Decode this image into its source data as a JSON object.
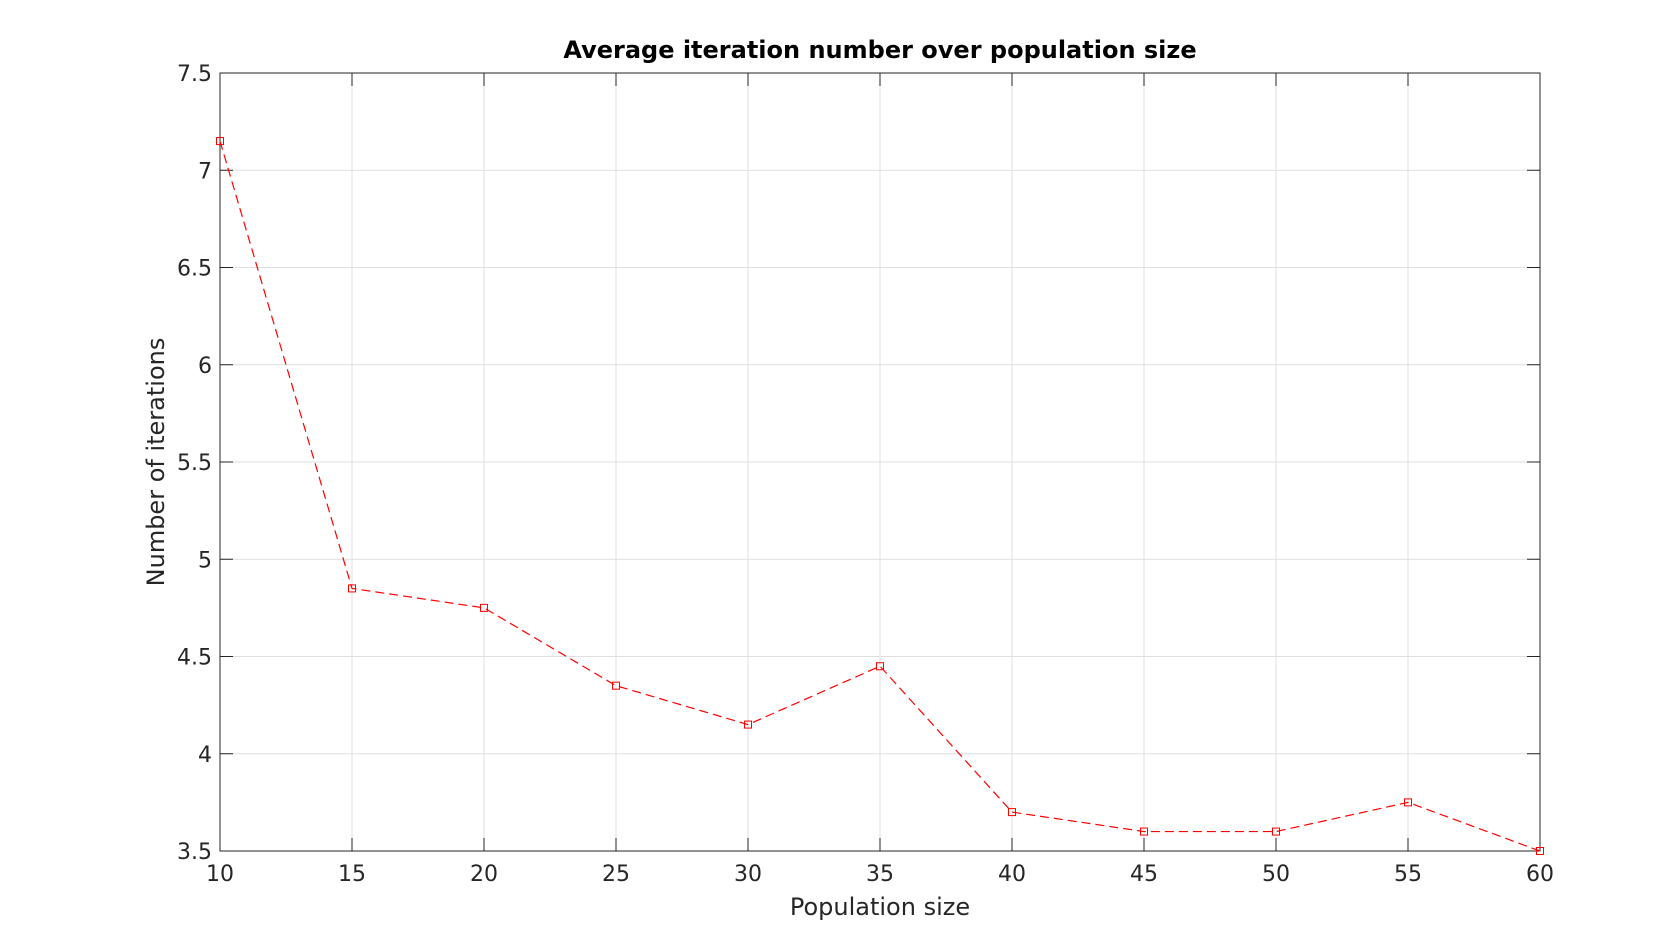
{
  "chart_data": {
    "type": "line",
    "title": "Average iteration number over population size",
    "xlabel": "Population size",
    "ylabel": "Number of iterations",
    "xlim": [
      10,
      60
    ],
    "ylim": [
      3.5,
      7.5
    ],
    "x_ticks": [
      "10",
      "15",
      "20",
      "25",
      "30",
      "35",
      "40",
      "45",
      "50",
      "55",
      "60"
    ],
    "y_ticks": [
      "3.5",
      "4",
      "4.5",
      "5",
      "5.5",
      "6",
      "6.5",
      "7",
      "7.5"
    ],
    "grid": true,
    "legend": "none",
    "series": [
      {
        "x": [
          10,
          15,
          20,
          25,
          30,
          35,
          40,
          45,
          50,
          55,
          60
        ],
        "values": [
          7.15,
          4.85,
          4.75,
          4.35,
          4.15,
          4.45,
          3.7,
          3.6,
          3.6,
          3.75,
          3.5
        ],
        "color": "#ff0000",
        "line_style": "dashed",
        "marker": "square"
      }
    ]
  }
}
